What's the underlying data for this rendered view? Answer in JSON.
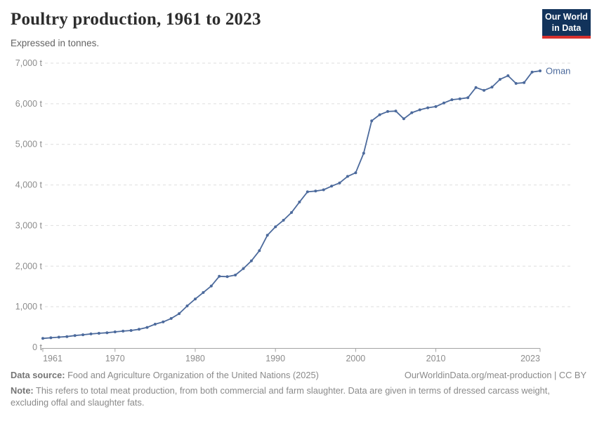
{
  "header": {
    "title": "Poultry production, 1961 to 2023",
    "subtitle": "Expressed in tonnes."
  },
  "logo": {
    "line1": "Our World",
    "line2": "in Data"
  },
  "chart_data": {
    "type": "line",
    "title": "Poultry production, 1961 to 2023",
    "subtitle": "Expressed in tonnes.",
    "xlabel": "",
    "ylabel": "",
    "unit": "t",
    "grid": "horizontal-dashed",
    "legend_position": "end-of-line-label",
    "xlim": [
      1961,
      2023
    ],
    "ylim": [
      0,
      7000
    ],
    "xticks": [
      1961,
      1970,
      1980,
      1990,
      2000,
      2010,
      2023
    ],
    "yticks": [
      0,
      1000,
      2000,
      3000,
      4000,
      5000,
      6000,
      7000
    ],
    "ytick_labels": [
      "0 t",
      "1,000 t",
      "2,000 t",
      "3,000 t",
      "4,000 t",
      "5,000 t",
      "6,000 t",
      "7,000 t"
    ],
    "series": [
      {
        "name": "Oman",
        "color": "#4c6a9c",
        "x": [
          1961,
          1962,
          1963,
          1964,
          1965,
          1966,
          1967,
          1968,
          1969,
          1970,
          1971,
          1972,
          1973,
          1974,
          1975,
          1976,
          1977,
          1978,
          1979,
          1980,
          1981,
          1982,
          1983,
          1984,
          1985,
          1986,
          1987,
          1988,
          1989,
          1990,
          1991,
          1992,
          1993,
          1994,
          1995,
          1996,
          1997,
          1998,
          1999,
          2000,
          2001,
          2002,
          2003,
          2004,
          2005,
          2006,
          2007,
          2008,
          2009,
          2010,
          2011,
          2012,
          2013,
          2014,
          2015,
          2016,
          2017,
          2018,
          2019,
          2020,
          2021,
          2022,
          2023
        ],
        "values": [
          220,
          235,
          250,
          265,
          290,
          310,
          330,
          345,
          360,
          380,
          400,
          415,
          445,
          490,
          570,
          625,
          710,
          830,
          1020,
          1190,
          1350,
          1510,
          1750,
          1740,
          1780,
          1940,
          2130,
          2380,
          2760,
          2970,
          3130,
          3320,
          3580,
          3830,
          3850,
          3880,
          3970,
          4050,
          4210,
          4300,
          4780,
          5580,
          5730,
          5810,
          5820,
          5630,
          5780,
          5850,
          5900,
          5930,
          6020,
          6100,
          6120,
          6150,
          6400,
          6330,
          6410,
          6600,
          6690,
          6500,
          6520,
          6780,
          6810
        ]
      }
    ]
  },
  "footer": {
    "data_source_label": "Data source:",
    "data_source_text": " Food and Agriculture Organization of the United Nations (2025)",
    "link_text": "OurWorldinData.org/meat-production | CC BY",
    "note_label": "Note:",
    "note_text": " This refers to total meat production, from both commercial and farm slaughter. Data are given in terms of dressed carcass weight, excluding offal and slaughter fats."
  },
  "colors": {
    "accent_blue": "#4c6a9c",
    "logo_navy": "#12335b",
    "logo_red": "#d7312e",
    "grid": "#dedede",
    "axis": "#a3a3a3",
    "tick_text": "#8c8c8c"
  }
}
